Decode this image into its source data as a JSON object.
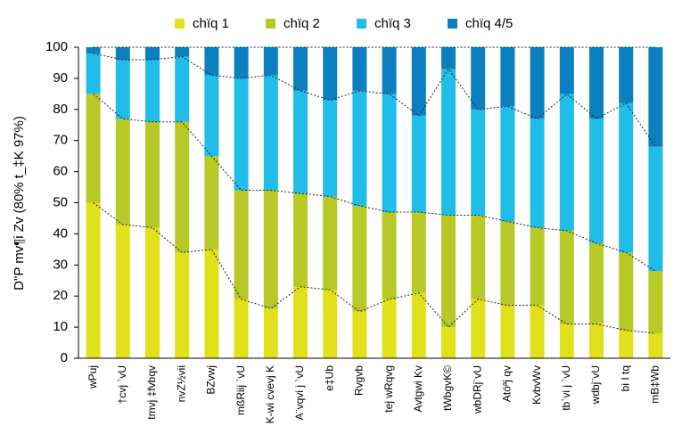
{
  "chart_data": {
    "type": "stacked_bar",
    "y_label": "D\"P mv¶i Zv (80% t_‡K 97%)",
    "categories": [
      "wPuj",
      "†cvj `vU",
      "tmvj ‡fvbqv",
      "nvZ½vii",
      "BZvwj",
      "mßRiij `vU",
      "K-wi cvevj K",
      "A¨vqvi j `vU",
      "e‡Ub",
      "Rvgvb",
      "tej wRqvg",
      "Avtgwi Kv",
      "tWbgvK©",
      "wbDRj¨vU",
      "Atóªj qv",
      "KvbvWv",
      "tb`vi j `vU",
      "wdbj¨vU",
      "bi I tq",
      "mB‡Wb"
    ],
    "series": [
      {
        "name": "chïq 1",
        "color": "#e1e11b",
        "values": [
          50,
          43,
          42,
          34,
          35,
          19,
          16,
          23,
          22,
          15,
          19,
          21,
          10,
          19,
          17,
          17,
          11,
          11,
          9,
          8
        ]
      },
      {
        "name": "chïq 2",
        "color": "#b6c927",
        "values": [
          35,
          34,
          34,
          42,
          30,
          35,
          38,
          30,
          30,
          34,
          28,
          26,
          36,
          27,
          27,
          25,
          30,
          26,
          25,
          20
        ]
      },
      {
        "name": "chïq 3",
        "color": "#1fbde8",
        "values": [
          13,
          19,
          20,
          21,
          26,
          36,
          37,
          33,
          31,
          37,
          38,
          31,
          47,
          34,
          37,
          35,
          44,
          40,
          48,
          40
        ]
      },
      {
        "name": "chïq 4/5",
        "color": "#0b80c1",
        "values": [
          2,
          4,
          4,
          3,
          9,
          10,
          9,
          14,
          17,
          14,
          15,
          22,
          7,
          20,
          19,
          23,
          15,
          23,
          18,
          32
        ]
      }
    ],
    "ylim": [
      0,
      100
    ],
    "yticks": [
      0,
      10,
      20,
      30,
      40,
      50,
      60,
      70,
      80,
      90,
      100
    ]
  }
}
